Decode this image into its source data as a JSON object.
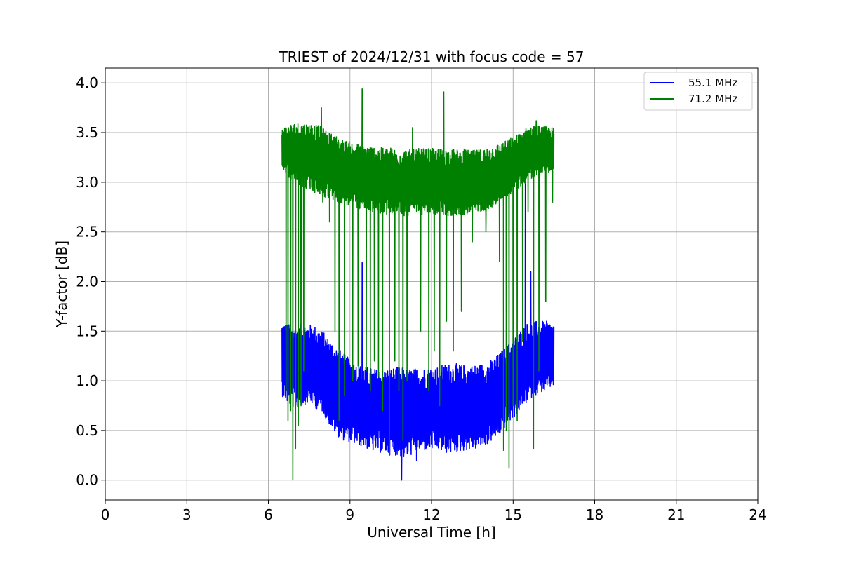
{
  "chart_data": {
    "type": "line",
    "title": "TRIEST of 2024/12/31 with focus code = 57",
    "xlabel": "Universal Time [h]",
    "ylabel": "Y-factor [dB]",
    "xlim": [
      0,
      24
    ],
    "ylim": [
      -0.2,
      4.15
    ],
    "xticks": [
      0,
      3,
      6,
      9,
      12,
      15,
      18,
      21,
      24
    ],
    "xtick_labels": [
      "0",
      "3",
      "6",
      "9",
      "12",
      "15",
      "18",
      "21",
      "24"
    ],
    "yticks": [
      0.0,
      0.5,
      1.0,
      1.5,
      2.0,
      2.5,
      3.0,
      3.5,
      4.0
    ],
    "ytick_labels": [
      "0.0",
      "0.5",
      "1.0",
      "1.5",
      "2.0",
      "2.5",
      "3.0",
      "3.5",
      "4.0"
    ],
    "grid": true,
    "legend_position": "top-right",
    "series": [
      {
        "name": "55.1 MHz",
        "color": "#0000ff",
        "x": [
          6.5,
          6.75,
          7.0,
          7.25,
          7.5,
          7.75,
          8.0,
          8.25,
          8.5,
          8.75,
          9.0,
          9.25,
          9.5,
          9.75,
          10.0,
          10.25,
          10.5,
          10.75,
          11.0,
          11.25,
          11.5,
          11.75,
          12.0,
          12.25,
          12.5,
          12.75,
          13.0,
          13.25,
          13.5,
          13.75,
          14.0,
          14.25,
          14.5,
          14.75,
          15.0,
          15.25,
          15.5,
          15.75,
          16.0,
          16.25,
          16.5
        ],
        "upper": [
          1.6,
          1.57,
          1.55,
          1.58,
          1.57,
          1.55,
          1.5,
          1.42,
          1.35,
          1.28,
          1.22,
          1.17,
          1.15,
          1.13,
          1.12,
          1.12,
          1.13,
          1.14,
          1.13,
          1.12,
          1.13,
          1.13,
          1.14,
          1.15,
          1.17,
          1.18,
          1.17,
          1.16,
          1.16,
          1.17,
          1.18,
          1.22,
          1.28,
          1.35,
          1.42,
          1.5,
          1.58,
          1.6,
          1.6,
          1.6,
          1.58
        ],
        "lower": [
          0.85,
          0.75,
          0.72,
          0.75,
          0.78,
          0.72,
          0.68,
          0.55,
          0.45,
          0.4,
          0.38,
          0.35,
          0.33,
          0.3,
          0.28,
          0.27,
          0.25,
          0.25,
          0.22,
          0.25,
          0.28,
          0.3,
          0.3,
          0.3,
          0.27,
          0.27,
          0.28,
          0.3,
          0.3,
          0.32,
          0.35,
          0.4,
          0.45,
          0.55,
          0.62,
          0.7,
          0.78,
          0.85,
          0.88,
          0.9,
          0.95
        ],
        "spikes": [
          [
            9.45,
            2.19
          ],
          [
            10.9,
            0.0
          ],
          [
            11.45,
            0.2
          ],
          [
            15.45,
            3.03
          ],
          [
            15.65,
            2.1
          ]
        ]
      },
      {
        "name": "71.2 MHz",
        "color": "#008000",
        "x": [
          6.5,
          6.75,
          7.0,
          7.25,
          7.5,
          7.75,
          8.0,
          8.25,
          8.5,
          8.75,
          9.0,
          9.25,
          9.5,
          9.75,
          10.0,
          10.25,
          10.5,
          10.75,
          11.0,
          11.25,
          11.5,
          11.75,
          12.0,
          12.25,
          12.5,
          12.75,
          13.0,
          13.25,
          13.5,
          13.75,
          14.0,
          14.25,
          14.5,
          14.75,
          15.0,
          15.25,
          15.5,
          15.75,
          16.0,
          16.25,
          16.5
        ],
        "upper": [
          3.55,
          3.58,
          3.6,
          3.6,
          3.6,
          3.58,
          3.55,
          3.5,
          3.47,
          3.43,
          3.41,
          3.39,
          3.38,
          3.37,
          3.36,
          3.35,
          3.35,
          3.34,
          3.33,
          3.33,
          3.34,
          3.34,
          3.34,
          3.34,
          3.34,
          3.33,
          3.33,
          3.33,
          3.32,
          3.33,
          3.35,
          3.37,
          3.39,
          3.42,
          3.46,
          3.5,
          3.55,
          3.57,
          3.57,
          3.56,
          3.55
        ],
        "lower": [
          3.15,
          3.05,
          3.0,
          2.95,
          2.92,
          2.88,
          2.85,
          2.82,
          2.8,
          2.78,
          2.75,
          2.73,
          2.72,
          2.7,
          2.69,
          2.68,
          2.67,
          2.67,
          2.66,
          2.66,
          2.67,
          2.67,
          2.67,
          2.67,
          2.66,
          2.66,
          2.67,
          2.67,
          2.68,
          2.7,
          2.72,
          2.75,
          2.8,
          2.85,
          2.9,
          2.95,
          3.0,
          3.05,
          3.1,
          3.1,
          3.1
        ],
        "dropouts": [
          [
            6.65,
            0.9
          ],
          [
            6.72,
            0.6
          ],
          [
            6.82,
            0.7
          ],
          [
            6.9,
            0.0
          ],
          [
            7.0,
            0.32
          ],
          [
            7.1,
            0.55
          ],
          [
            7.2,
            0.75
          ],
          [
            7.3,
            1.1
          ],
          [
            8.0,
            2.8
          ],
          [
            8.25,
            2.6
          ],
          [
            8.45,
            1.5
          ],
          [
            8.6,
            0.6
          ],
          [
            8.8,
            0.85
          ],
          [
            9.1,
            1.0
          ],
          [
            9.3,
            1.15
          ],
          [
            9.6,
            1.1
          ],
          [
            9.75,
            0.9
          ],
          [
            9.9,
            1.2
          ],
          [
            10.05,
            1.05
          ],
          [
            10.2,
            0.7
          ],
          [
            10.45,
            0.25
          ],
          [
            10.65,
            1.2
          ],
          [
            10.8,
            0.9
          ],
          [
            10.95,
            0.4
          ],
          [
            11.1,
            1.0
          ],
          [
            11.3,
            1.4
          ],
          [
            11.6,
            1.5
          ],
          [
            11.9,
            0.9
          ],
          [
            12.1,
            1.3
          ],
          [
            12.3,
            0.75
          ],
          [
            12.55,
            1.6
          ],
          [
            12.8,
            1.3
          ],
          [
            13.1,
            1.7
          ],
          [
            13.5,
            2.4
          ],
          [
            14.0,
            2.5
          ],
          [
            14.5,
            2.2
          ],
          [
            14.65,
            0.3
          ],
          [
            14.75,
            0.5
          ],
          [
            14.85,
            0.12
          ],
          [
            15.0,
            0.75
          ],
          [
            15.15,
            0.6
          ],
          [
            15.35,
            1.4
          ],
          [
            15.55,
            2.7
          ],
          [
            15.75,
            0.32
          ],
          [
            15.95,
            1.1
          ],
          [
            16.2,
            1.8
          ],
          [
            16.45,
            2.8
          ]
        ],
        "spikes": [
          [
            7.95,
            3.75
          ],
          [
            9.45,
            3.94
          ],
          [
            11.3,
            3.55
          ],
          [
            12.45,
            3.91
          ],
          [
            15.85,
            3.62
          ]
        ]
      }
    ]
  }
}
